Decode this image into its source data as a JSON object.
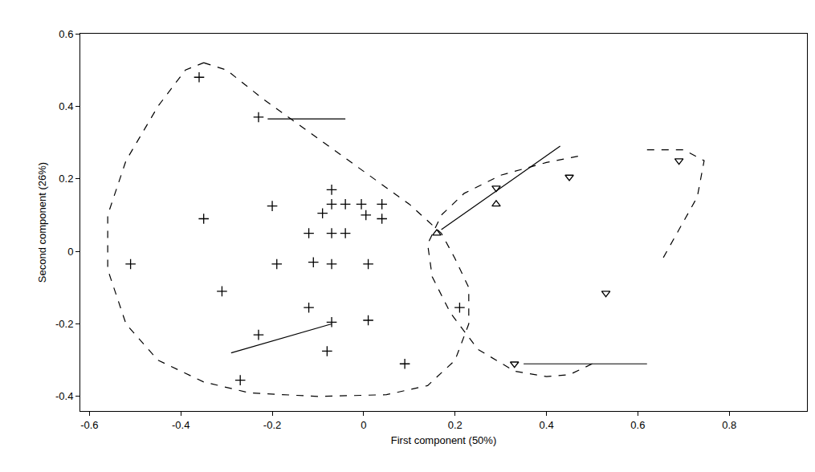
{
  "chart_data": {
    "type": "scatter",
    "xlabel": "First component (50%)",
    "ylabel": "Second component (26%)",
    "xlim": [
      -0.62,
      0.97
    ],
    "ylim": [
      -0.44,
      0.6
    ],
    "xticks": [
      -0.6,
      -0.4,
      -0.2,
      0,
      0.2,
      0.4,
      0.6,
      0.8
    ],
    "yticks": [
      -0.4,
      -0.2,
      0,
      0.2,
      0.4,
      0.6
    ],
    "grid": false,
    "series": [
      {
        "type": "scatter",
        "marker": "cross",
        "color": "#000000",
        "x": [
          -0.36,
          -0.23,
          -0.35,
          -0.51,
          -0.31,
          -0.2,
          -0.19,
          -0.07,
          -0.07,
          -0.09,
          -0.04,
          -0.005,
          0.04,
          0.005,
          0.04,
          -0.12,
          -0.07,
          -0.04,
          -0.11,
          -0.07,
          0.01,
          -0.12,
          -0.07,
          0.01,
          -0.23,
          -0.08,
          -0.27,
          0.09,
          0.21
        ],
        "y": [
          0.48,
          0.37,
          0.09,
          -0.035,
          -0.11,
          0.125,
          -0.035,
          0.17,
          0.13,
          0.105,
          0.13,
          0.13,
          0.13,
          0.1,
          0.09,
          0.05,
          0.05,
          0.05,
          -0.03,
          -0.035,
          -0.035,
          -0.155,
          -0.195,
          -0.19,
          -0.23,
          -0.275,
          -0.355,
          -0.31,
          -0.155
        ]
      },
      {
        "type": "scatter",
        "marker": "triangle-up",
        "color": "#000000",
        "x": [
          0.16,
          0.29
        ],
        "y": [
          0.05,
          0.13
        ]
      },
      {
        "type": "scatter",
        "marker": "triangle-down",
        "color": "#000000",
        "x": [
          0.29,
          0.45,
          0.69,
          0.53,
          0.33
        ],
        "y": [
          0.175,
          0.205,
          0.25,
          -0.115,
          -0.31
        ]
      },
      {
        "type": "line",
        "line_style": "dashed",
        "color": "#000000",
        "x": [
          -0.35,
          -0.3,
          -0.22,
          -0.12,
          0.0,
          0.1,
          0.17,
          0.2,
          0.23,
          0.23,
          0.2,
          0.14,
          0.05,
          -0.1,
          -0.25,
          -0.35,
          -0.45,
          -0.52,
          -0.56,
          -0.56,
          -0.52,
          -0.45,
          -0.39,
          -0.35
        ],
        "y": [
          0.52,
          0.5,
          0.42,
          0.33,
          0.22,
          0.13,
          0.05,
          -0.02,
          -0.1,
          -0.2,
          -0.3,
          -0.37,
          -0.395,
          -0.4,
          -0.39,
          -0.36,
          -0.3,
          -0.2,
          -0.05,
          0.1,
          0.25,
          0.4,
          0.5,
          0.52
        ]
      },
      {
        "type": "line",
        "line_style": "dashed",
        "color": "#000000",
        "x": [
          0.5,
          0.45,
          0.4,
          0.33,
          0.25,
          0.19,
          0.15,
          0.14,
          0.17,
          0.22,
          0.3,
          0.4,
          0.48,
          null,
          0.62,
          0.7,
          0.745,
          0.73,
          0.69,
          0.65
        ],
        "y": [
          -0.31,
          -0.34,
          -0.345,
          -0.33,
          -0.27,
          -0.17,
          -0.07,
          0.02,
          0.1,
          0.16,
          0.21,
          0.245,
          0.265,
          null,
          0.28,
          0.28,
          0.25,
          0.15,
          0.06,
          -0.03
        ]
      },
      {
        "type": "line",
        "line_style": "solid",
        "color": "#000000",
        "x": [
          -0.21,
          -0.04
        ],
        "y": [
          0.365,
          0.365
        ]
      },
      {
        "type": "line",
        "line_style": "solid",
        "color": "#000000",
        "x": [
          0.17,
          0.43
        ],
        "y": [
          0.06,
          0.29
        ]
      },
      {
        "type": "line",
        "line_style": "solid",
        "color": "#000000",
        "x": [
          -0.07,
          -0.29
        ],
        "y": [
          -0.2,
          -0.28
        ]
      },
      {
        "type": "line",
        "line_style": "solid",
        "color": "#000000",
        "x": [
          0.35,
          0.62
        ],
        "y": [
          -0.31,
          -0.31
        ]
      }
    ]
  }
}
